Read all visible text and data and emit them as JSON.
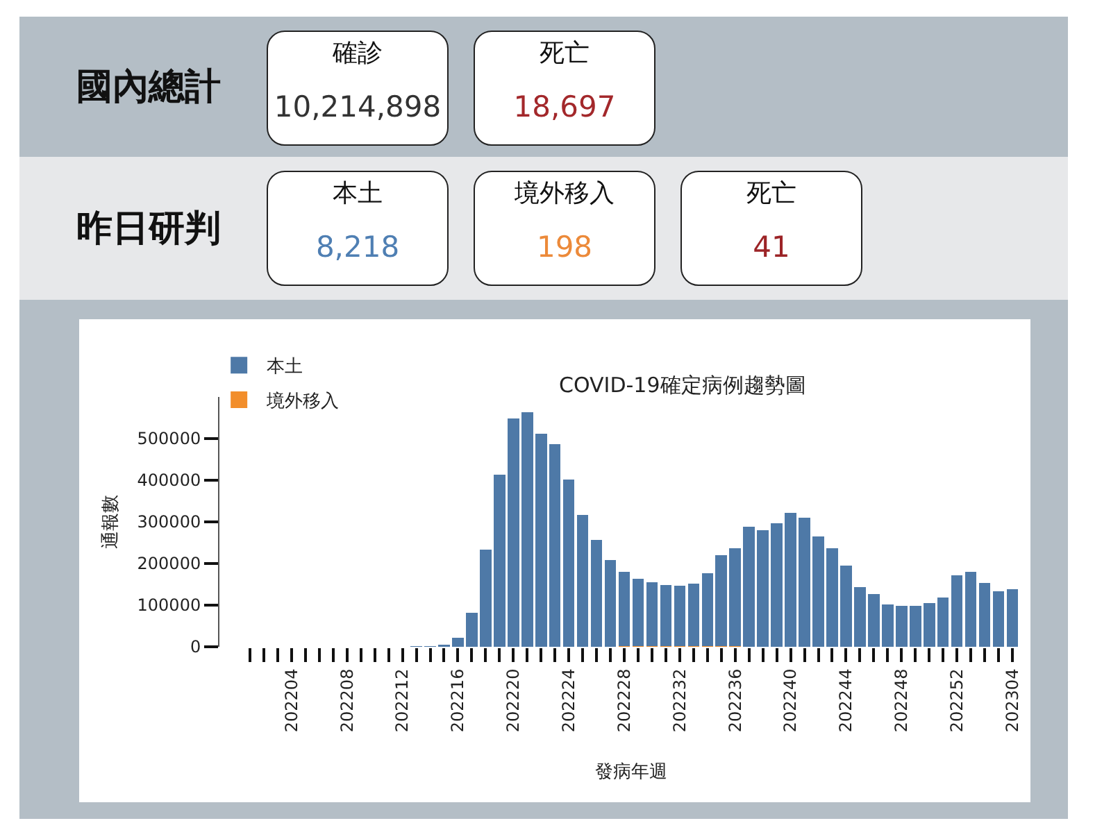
{
  "chart_data": [
    {
      "type": "other",
      "title": "國內總計",
      "categories": [
        "確診",
        "死亡"
      ],
      "value_labels": [
        "10,214,898",
        "18,697"
      ]
    },
    {
      "type": "other",
      "title": "昨日研判",
      "categories": [
        "本土",
        "境外移入",
        "死亡"
      ],
      "value_labels": [
        "8,218",
        "198",
        "41"
      ]
    },
    {
      "type": "bar",
      "title": "COVID-19確定病例趨勢圖",
      "xlabel": "發病年週",
      "ylabel": "通報數",
      "categories": [
        null,
        null,
        null,
        "202204",
        null,
        null,
        null,
        "202208",
        null,
        null,
        null,
        "202212",
        null,
        null,
        null,
        "202216",
        null,
        null,
        null,
        "202220",
        null,
        null,
        null,
        "202224",
        null,
        null,
        null,
        "202228",
        null,
        null,
        null,
        "202232",
        null,
        null,
        null,
        "202236",
        null,
        null,
        null,
        "202240",
        null,
        null,
        null,
        "202244",
        null,
        null,
        null,
        "202248",
        null,
        null,
        null,
        "202252",
        null,
        null,
        null,
        "202304"
      ],
      "series": [
        {
          "name": "境外移入",
          "color": "#f28e2b",
          "values": [
            0,
            0,
            0,
            0,
            0,
            0,
            0,
            0,
            0,
            0,
            0,
            0,
            0,
            0,
            0,
            0,
            0,
            0,
            0,
            0,
            0,
            0,
            0,
            0,
            0,
            0,
            0,
            2000,
            2000,
            2000,
            2000,
            2000,
            2000,
            2000,
            2000,
            2000,
            0,
            0,
            0,
            0,
            0,
            0,
            0,
            0,
            0,
            0,
            0,
            0,
            0,
            0,
            0,
            0,
            0,
            0,
            0,
            0
          ]
        },
        {
          "name": "本土",
          "color": "#4e79a7",
          "values": [
            0,
            0,
            0,
            0,
            0,
            0,
            0,
            0,
            0,
            0,
            0,
            0,
            1000,
            2000,
            5000,
            21000,
            82000,
            233000,
            413000,
            549000,
            563000,
            512000,
            487000,
            402000,
            316000,
            257000,
            208000,
            178000,
            162000,
            153000,
            147000,
            144000,
            149000,
            175000,
            218000,
            235000,
            288000,
            280000,
            296000,
            322000,
            310000,
            265000,
            237000,
            195000,
            144000,
            127000,
            101000,
            99000,
            99000,
            105000,
            118000,
            171000,
            180000,
            153000,
            133000,
            139000
          ]
        }
      ],
      "stacked": true,
      "ylim": [
        0,
        600000
      ],
      "yticks": [
        0,
        100000,
        200000,
        300000,
        400000,
        500000
      ],
      "grid": false,
      "legend": "top left"
    }
  ]
}
